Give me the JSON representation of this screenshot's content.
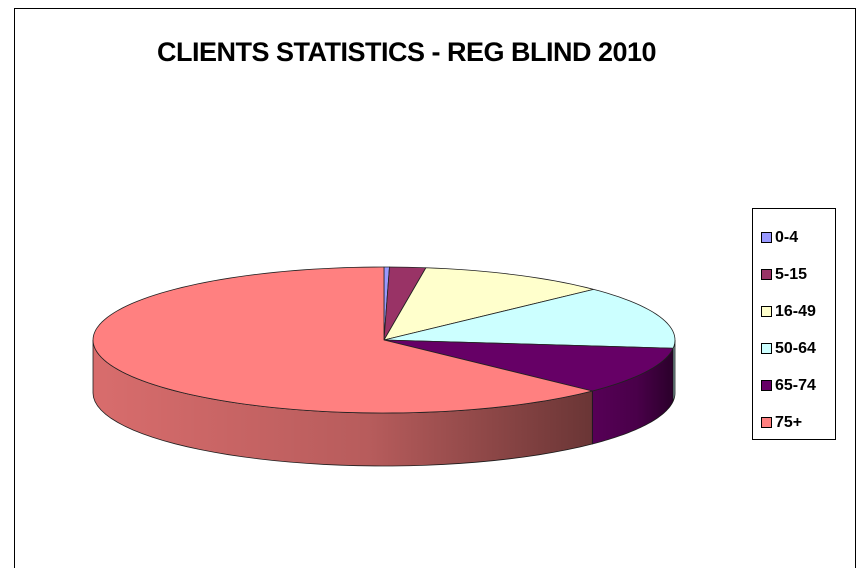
{
  "chart_data": {
    "type": "pie",
    "style": "3d",
    "title": "CLIENTS STATISTICS - REG BLIND 2010",
    "legend_position": "right",
    "series": [
      {
        "name": "0-4",
        "value": 0.3,
        "color": "#9999ff"
      },
      {
        "name": "5-15",
        "value": 2.0,
        "color": "#993366"
      },
      {
        "name": "16-49",
        "value": 10.5,
        "color": "#ffffcc"
      },
      {
        "name": "50-64",
        "value": 14.0,
        "color": "#ccffff"
      },
      {
        "name": "65-74",
        "value": 10.5,
        "color": "#660066"
      },
      {
        "name": "75+",
        "value": 62.7,
        "color": "#ff8080"
      }
    ]
  }
}
